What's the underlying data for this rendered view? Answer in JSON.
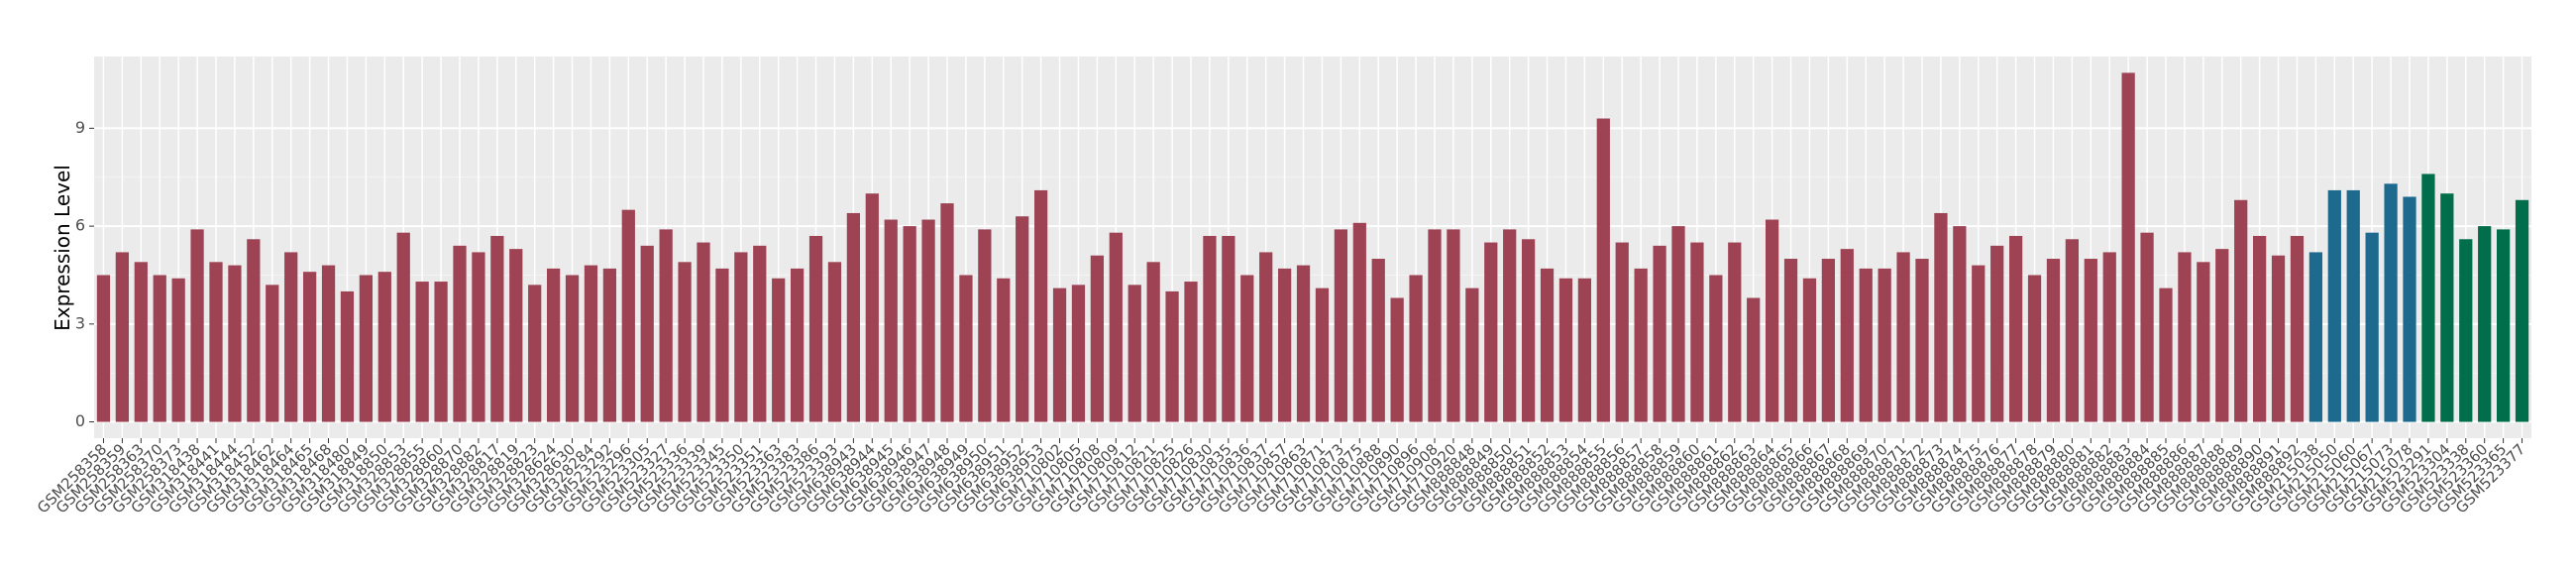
{
  "chart_data": {
    "type": "bar",
    "y_label": "Expression Level",
    "ylim": [
      -0.5,
      11.2
    ],
    "yticks": [
      0,
      3,
      6,
      9
    ],
    "grid": true,
    "background": "#ebebeb",
    "series": [
      {
        "color": "#9e4354",
        "categories": [
          "GSM258358",
          "GSM258359",
          "GSM258363",
          "GSM258370",
          "GSM258373",
          "GSM318438",
          "GSM318441",
          "GSM318444",
          "GSM318452",
          "GSM318462",
          "GSM318464",
          "GSM318465",
          "GSM318468",
          "GSM318480",
          "GSM318849",
          "GSM318850",
          "GSM328853",
          "GSM328855",
          "GSM328860",
          "GSM328870",
          "GSM328882",
          "GSM328817",
          "GSM328819",
          "GSM328823",
          "GSM328624",
          "GSM328630",
          "GSM328284",
          "GSM523292",
          "GSM523296",
          "GSM523305",
          "GSM523327",
          "GSM523336",
          "GSM523339",
          "GSM523345",
          "GSM523350",
          "GSM523351",
          "GSM523363",
          "GSM523383",
          "GSM523386",
          "GSM523393",
          "GSM638943",
          "GSM638944",
          "GSM638945",
          "GSM638946",
          "GSM638947",
          "GSM638948",
          "GSM638949",
          "GSM638950",
          "GSM638951",
          "GSM638952",
          "GSM638953",
          "GSM710802",
          "GSM710805",
          "GSM710808",
          "GSM710809",
          "GSM710812",
          "GSM710821",
          "GSM710825",
          "GSM710826",
          "GSM710830",
          "GSM710835",
          "GSM710836",
          "GSM710837",
          "GSM710857",
          "GSM710863",
          "GSM710871",
          "GSM710873",
          "GSM710875",
          "GSM710888",
          "GSM710890",
          "GSM710896",
          "GSM710908",
          "GSM710920",
          "GSM888848",
          "GSM888849",
          "GSM888850",
          "GSM888851",
          "GSM888852",
          "GSM888853",
          "GSM888854",
          "GSM888855",
          "GSM888856",
          "GSM888857",
          "GSM888858",
          "GSM888859",
          "GSM888860",
          "GSM888861",
          "GSM888862",
          "GSM888863",
          "GSM888864",
          "GSM888865",
          "GSM888866",
          "GSM888867",
          "GSM888868",
          "GSM888869",
          "GSM888870",
          "GSM888871",
          "GSM888872",
          "GSM888873",
          "GSM888874",
          "GSM888875",
          "GSM888876",
          "GSM888877",
          "GSM888878",
          "GSM888879",
          "GSM888880",
          "GSM888881",
          "GSM888882",
          "GSM888883",
          "GSM888884",
          "GSM888885",
          "GSM888886",
          "GSM888887",
          "GSM888888",
          "GSM888889",
          "GSM888890",
          "GSM888891",
          "GSM888892"
        ],
        "values": [
          4.5,
          5.2,
          4.9,
          4.5,
          4.4,
          5.9,
          4.9,
          4.8,
          5.6,
          4.2,
          5.2,
          4.6,
          4.8,
          4.0,
          4.5,
          4.6,
          5.8,
          4.3,
          4.3,
          5.4,
          5.2,
          5.7,
          5.3,
          4.2,
          4.7,
          4.5,
          4.8,
          4.7,
          6.5,
          5.4,
          5.9,
          4.9,
          5.5,
          4.7,
          5.2,
          5.4,
          4.4,
          4.7,
          5.7,
          4.9,
          6.4,
          7.0,
          6.2,
          6.0,
          6.2,
          6.7,
          4.5,
          5.9,
          4.4,
          6.3,
          7.1,
          4.1,
          4.2,
          5.1,
          5.8,
          4.2,
          4.9,
          4.0,
          4.3,
          5.7,
          5.7,
          4.5,
          5.2,
          4.7,
          4.8,
          4.1,
          5.9,
          6.1,
          5.0,
          3.8,
          4.5,
          5.9,
          5.9,
          4.1,
          5.5,
          5.9,
          5.6,
          4.7,
          4.4,
          4.4,
          9.3,
          5.5,
          4.7,
          5.4,
          6.0,
          5.5,
          4.5,
          5.5,
          3.8,
          6.2,
          5.0,
          4.4,
          5.0,
          5.3,
          4.7,
          4.7,
          5.2,
          5.0,
          6.4,
          6.0,
          4.8,
          5.4,
          5.7,
          4.5,
          5.0,
          5.6,
          5.0,
          5.2,
          10.7,
          5.8,
          4.1,
          5.2,
          4.9,
          5.3,
          6.8,
          5.7,
          5.1,
          5.7
        ]
      },
      {
        "color": "#1e6a8f",
        "categories": [
          "GSM215038",
          "GSM215050",
          "GSM215060",
          "GSM215067",
          "GSM215073",
          "GSM215078"
        ],
        "values": [
          5.2,
          7.1,
          7.1,
          5.8,
          7.3,
          6.9
        ]
      },
      {
        "color": "#006e4a",
        "categories": [
          "GSM523291",
          "GSM523304",
          "GSM523338",
          "GSM523360",
          "GSM523365",
          "GSM523377"
        ],
        "values": [
          7.6,
          7.0,
          5.6,
          6.0,
          5.9,
          6.8
        ]
      }
    ]
  }
}
